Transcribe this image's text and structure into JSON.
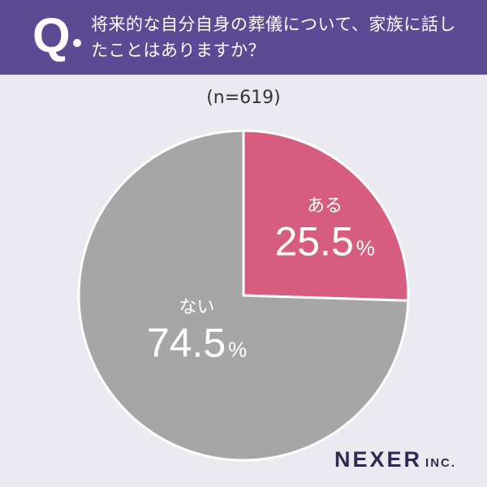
{
  "header": {
    "q_mark": "Q",
    "question": "将来的な自分自身の葬儀について、家族に話したことはありますか？"
  },
  "sample_note": "(n=619)",
  "brand": {
    "main": "NEXER",
    "suffix": "INC."
  },
  "colors": {
    "header_bg": "#5B4A94",
    "slice_yes": "#D65D7E",
    "slice_no": "#A7A6A7",
    "background": "#ECEAF1"
  },
  "chart_data": {
    "type": "pie",
    "title": "",
    "slices": [
      {
        "label": "ある",
        "value": 25.5,
        "display": "25.5",
        "unit": "%",
        "color": "#D65D7E"
      },
      {
        "label": "ない",
        "value": 74.5,
        "display": "74.5",
        "unit": "%",
        "color": "#A7A6A7"
      }
    ]
  }
}
